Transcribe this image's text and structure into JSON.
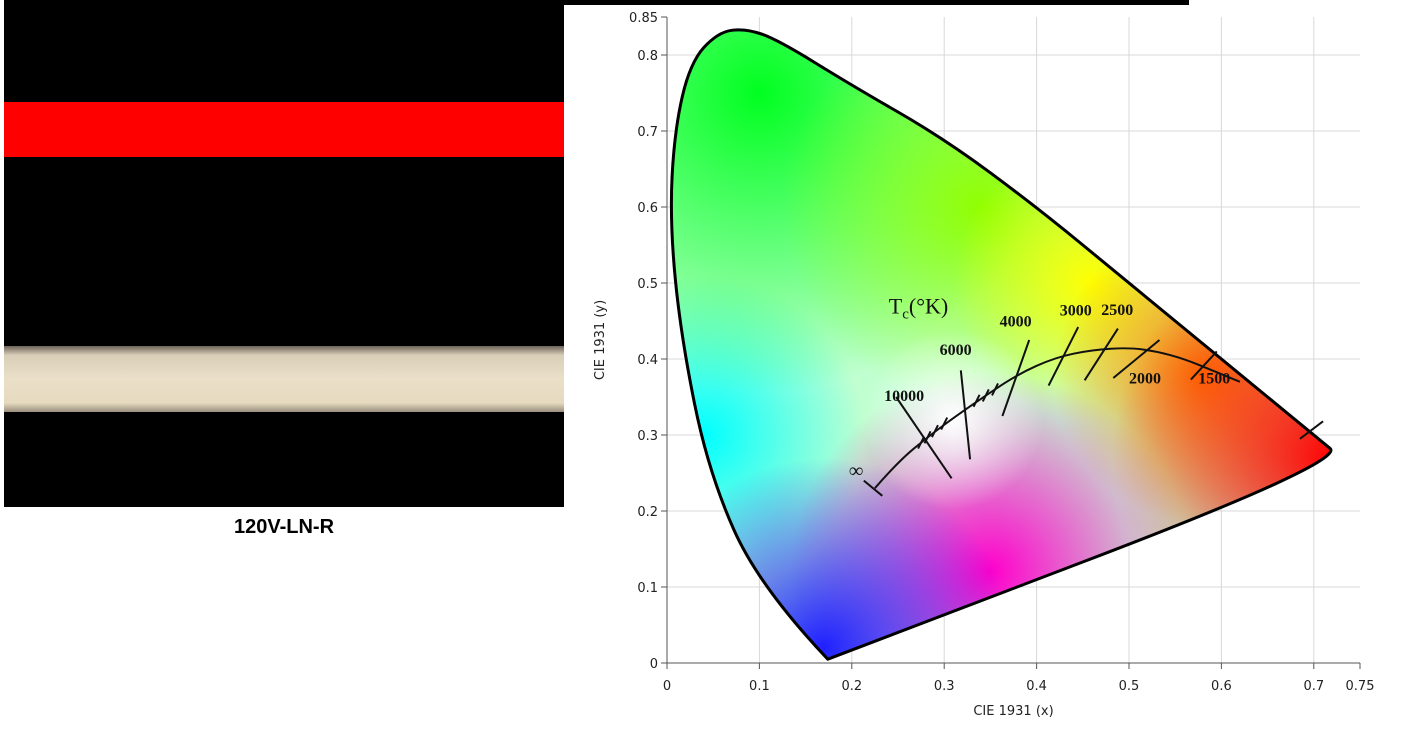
{
  "photo": {
    "caption": "120V-LN-R",
    "colors": {
      "background": "#000000",
      "red_strip": "#ff0000",
      "white_strip": "#eadfc8"
    }
  },
  "chart_data": {
    "type": "scatter",
    "title": "",
    "xlabel": "CIE 1931 (x)",
    "ylabel": "CIE 1931 (y)",
    "xlim": [
      0,
      0.75
    ],
    "ylim": [
      0,
      0.85
    ],
    "x_ticks": [
      "0",
      "0.1",
      "0.2",
      "0.3",
      "0.4",
      "0.5",
      "0.6",
      "0.7",
      "0.75"
    ],
    "y_ticks": [
      "0",
      "0.1",
      "0.2",
      "0.3",
      "0.4",
      "0.5",
      "0.6",
      "0.7",
      "0.8",
      "0.85"
    ],
    "grid": true,
    "locus_label": "Tc(°K)",
    "series": [
      {
        "x": [
          0.174,
          0.1,
          0.045,
          0.015,
          0.003,
          0.008,
          0.025,
          0.055,
          0.085,
          0.12,
          0.2,
          0.3,
          0.4,
          0.5,
          0.6,
          0.7,
          0.735,
          0.174
        ],
        "y": [
          0.005,
          0.1,
          0.25,
          0.43,
          0.58,
          0.7,
          0.79,
          0.83,
          0.835,
          0.82,
          0.76,
          0.69,
          0.6,
          0.5,
          0.4,
          0.3,
          0.265,
          0.005
        ]
      },
      {
        "x": [
          0.225,
          0.25,
          0.285,
          0.313,
          0.345,
          0.38,
          0.42,
          0.46,
          0.5,
          0.53,
          0.56,
          0.59,
          0.62
        ],
        "y": [
          0.23,
          0.265,
          0.3,
          0.325,
          0.352,
          0.38,
          0.402,
          0.412,
          0.415,
          0.41,
          0.4,
          0.385,
          0.37
        ]
      }
    ],
    "isotherm_labels": [
      {
        "text": "10000",
        "x": 0.235,
        "y": 0.345
      },
      {
        "text": "6000",
        "x": 0.295,
        "y": 0.405
      },
      {
        "text": "4000",
        "x": 0.36,
        "y": 0.443
      },
      {
        "text": "3000",
        "x": 0.425,
        "y": 0.457
      },
      {
        "text": "2500",
        "x": 0.47,
        "y": 0.458
      },
      {
        "text": "2000",
        "x": 0.5,
        "y": 0.368
      },
      {
        "text": "1500",
        "x": 0.575,
        "y": 0.368
      },
      {
        "text": "∞",
        "x": 0.197,
        "y": 0.245
      }
    ],
    "isotherm_ticks": [
      {
        "x1": 0.248,
        "y1": 0.35,
        "x2": 0.308,
        "y2": 0.243
      },
      {
        "x1": 0.318,
        "y1": 0.385,
        "x2": 0.328,
        "y2": 0.268
      },
      {
        "x1": 0.392,
        "y1": 0.425,
        "x2": 0.363,
        "y2": 0.325
      },
      {
        "x1": 0.445,
        "y1": 0.442,
        "x2": 0.413,
        "y2": 0.365
      },
      {
        "x1": 0.488,
        "y1": 0.44,
        "x2": 0.452,
        "y2": 0.372
      },
      {
        "x1": 0.533,
        "y1": 0.425,
        "x2": 0.483,
        "y2": 0.375
      },
      {
        "x1": 0.595,
        "y1": 0.41,
        "x2": 0.567,
        "y2": 0.373
      },
      {
        "x1": 0.685,
        "y1": 0.295,
        "x2": 0.71,
        "y2": 0.318
      }
    ]
  }
}
